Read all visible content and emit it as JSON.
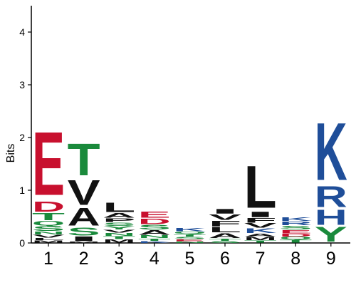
{
  "chart_data": {
    "type": "sequence-logo",
    "ylabel": "Bits",
    "ylim": [
      0,
      4.5
    ],
    "yticks": [
      "0",
      "1",
      "2",
      "3",
      "4"
    ],
    "positions": [
      "1",
      "2",
      "3",
      "4",
      "5",
      "6",
      "7",
      "8",
      "9"
    ],
    "colors": {
      "acidic": "#c8102e",
      "polar": "#1a8a3c",
      "hydrophobic": "#111111",
      "basic": "#1f4e99"
    },
    "columns": [
      [
        {
          "letter": "M",
          "height": 0.05,
          "color": "#111111"
        },
        {
          "letter": "L",
          "height": 0.05,
          "color": "#111111"
        },
        {
          "letter": "V",
          "height": 0.06,
          "color": "#111111"
        },
        {
          "letter": "N",
          "height": 0.06,
          "color": "#1a8a3c"
        },
        {
          "letter": "S",
          "height": 0.1,
          "color": "#1a8a3c"
        },
        {
          "letter": "Q",
          "height": 0.1,
          "color": "#1a8a3c"
        },
        {
          "letter": "T",
          "height": 0.16,
          "color": "#1a8a3c"
        },
        {
          "letter": "D",
          "height": 0.22,
          "color": "#c8102e"
        },
        {
          "letter": "E",
          "height": 1.39,
          "color": "#c8102e"
        }
      ],
      [
        {
          "letter": "M",
          "height": 0.03,
          "color": "#111111"
        },
        {
          "letter": "I",
          "height": 0.1,
          "color": "#111111"
        },
        {
          "letter": "S",
          "height": 0.17,
          "color": "#1a8a3c"
        },
        {
          "letter": "A",
          "height": 0.38,
          "color": "#111111"
        },
        {
          "letter": "V",
          "height": 0.55,
          "color": "#111111"
        },
        {
          "letter": "T",
          "height": 0.7,
          "color": "#1a8a3c"
        }
      ],
      [
        {
          "letter": "M",
          "height": 0.07,
          "color": "#111111"
        },
        {
          "letter": "T",
          "height": 0.06,
          "color": "#1a8a3c"
        },
        {
          "letter": "N",
          "height": 0.06,
          "color": "#1a8a3c"
        },
        {
          "letter": "V",
          "height": 0.06,
          "color": "#111111"
        },
        {
          "letter": "Y",
          "height": 0.07,
          "color": "#1a8a3c"
        },
        {
          "letter": "S",
          "height": 0.07,
          "color": "#1a8a3c"
        },
        {
          "letter": "P",
          "height": 0.08,
          "color": "#111111"
        },
        {
          "letter": "A",
          "height": 0.1,
          "color": "#111111"
        },
        {
          "letter": "L",
          "height": 0.2,
          "color": "#111111"
        }
      ],
      [
        {
          "letter": "K",
          "height": 0.04,
          "color": "#1f4e99"
        },
        {
          "letter": "T",
          "height": 0.05,
          "color": "#1a8a3c"
        },
        {
          "letter": "N",
          "height": 0.06,
          "color": "#1a8a3c"
        },
        {
          "letter": "A",
          "height": 0.1,
          "color": "#111111"
        },
        {
          "letter": "S",
          "height": 0.1,
          "color": "#1a8a3c"
        },
        {
          "letter": "D",
          "height": 0.12,
          "color": "#c8102e"
        },
        {
          "letter": "E",
          "height": 0.13,
          "color": "#c8102e"
        }
      ],
      [
        {
          "letter": "N",
          "height": 0.03,
          "color": "#1a8a3c"
        },
        {
          "letter": "E",
          "height": 0.04,
          "color": "#c8102e"
        },
        {
          "letter": "S",
          "height": 0.05,
          "color": "#1a8a3c"
        },
        {
          "letter": "T",
          "height": 0.05,
          "color": "#1a8a3c"
        },
        {
          "letter": "Q",
          "height": 0.05,
          "color": "#1a8a3c"
        },
        {
          "letter": "K",
          "height": 0.07,
          "color": "#1f4e99"
        }
      ],
      [
        {
          "letter": "S",
          "height": 0.04,
          "color": "#1a8a3c"
        },
        {
          "letter": "T",
          "height": 0.05,
          "color": "#1a8a3c"
        },
        {
          "letter": "A",
          "height": 0.1,
          "color": "#111111"
        },
        {
          "letter": "L",
          "height": 0.12,
          "color": "#111111"
        },
        {
          "letter": "F",
          "height": 0.12,
          "color": "#111111"
        },
        {
          "letter": "V",
          "height": 0.12,
          "color": "#111111"
        },
        {
          "letter": "I",
          "height": 0.1,
          "color": "#111111"
        }
      ],
      [
        {
          "letter": "T",
          "height": 0.05,
          "color": "#1a8a3c"
        },
        {
          "letter": "M",
          "height": 0.07,
          "color": "#111111"
        },
        {
          "letter": "A",
          "height": 0.06,
          "color": "#111111"
        },
        {
          "letter": "K",
          "height": 0.1,
          "color": "#1f4e99"
        },
        {
          "letter": "V",
          "height": 0.1,
          "color": "#111111"
        },
        {
          "letter": "F",
          "height": 0.1,
          "color": "#111111"
        },
        {
          "letter": "I",
          "height": 0.12,
          "color": "#111111"
        },
        {
          "letter": "L",
          "height": 0.92,
          "color": "#111111"
        }
      ],
      [
        {
          "letter": "T",
          "height": 0.06,
          "color": "#1a8a3c"
        },
        {
          "letter": "Q",
          "height": 0.06,
          "color": "#1a8a3c"
        },
        {
          "letter": "D",
          "height": 0.06,
          "color": "#c8102e"
        },
        {
          "letter": "E",
          "height": 0.07,
          "color": "#c8102e"
        },
        {
          "letter": "S",
          "height": 0.08,
          "color": "#1a8a3c"
        },
        {
          "letter": "R",
          "height": 0.08,
          "color": "#1f4e99"
        },
        {
          "letter": "K",
          "height": 0.08,
          "color": "#1f4e99"
        }
      ],
      [
        {
          "letter": "Y",
          "height": 0.32,
          "color": "#1a8a3c"
        },
        {
          "letter": "H",
          "height": 0.33,
          "color": "#1f4e99"
        },
        {
          "letter": "R",
          "height": 0.45,
          "color": "#1f4e99"
        },
        {
          "letter": "K",
          "height": 1.25,
          "color": "#1f4e99"
        }
      ]
    ]
  }
}
